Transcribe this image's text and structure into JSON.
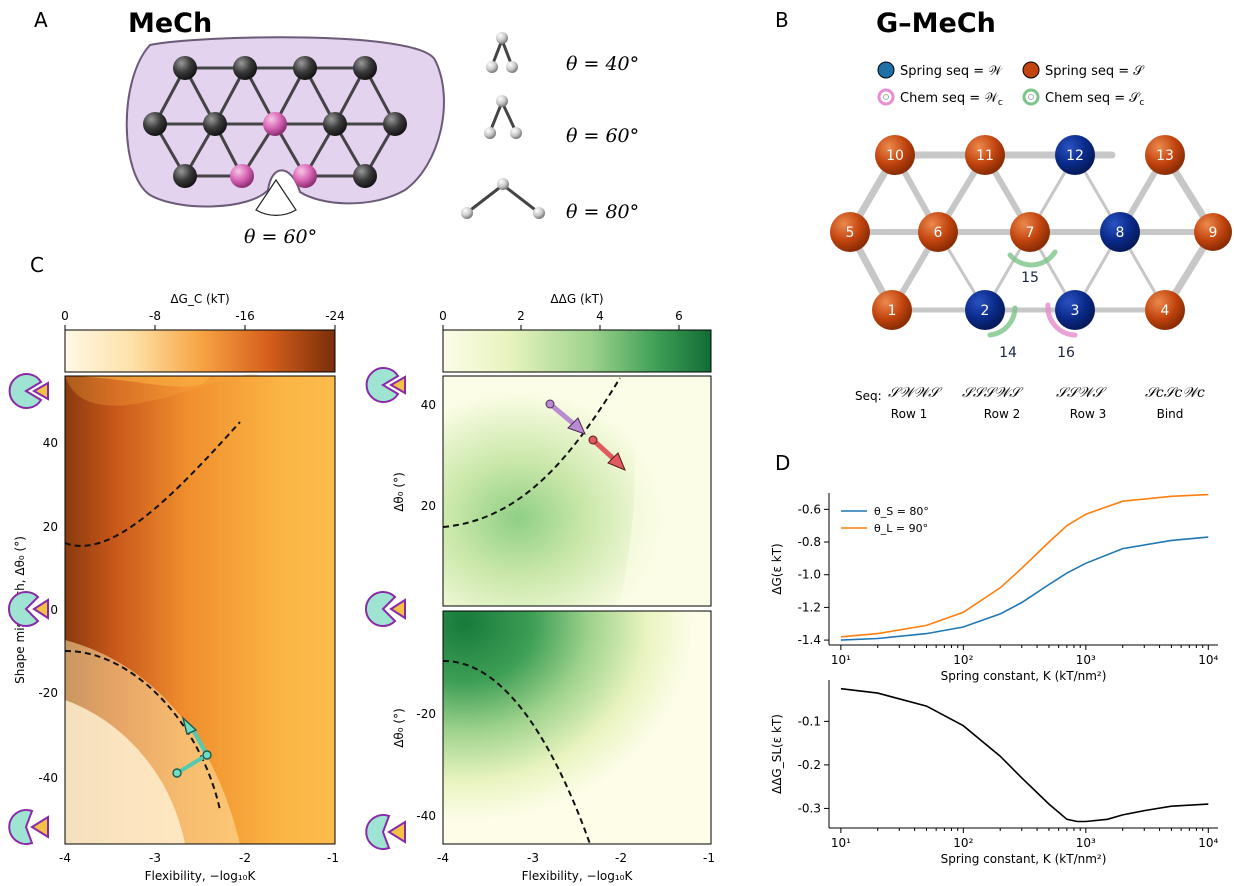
{
  "panel_letters": {
    "a": "A",
    "b": "B",
    "c": "C",
    "d": "D"
  },
  "panelA": {
    "title": "MeCh",
    "angle_label": "θ = 60°",
    "examples": [
      "θ = 40°",
      "θ = 60°",
      "θ = 80°"
    ],
    "colors": {
      "lattice_bg": "#e3d3ef",
      "node": "#3a3a3a",
      "pink": "#d966b6"
    }
  },
  "panelB": {
    "title": "G–MeCh",
    "legend": {
      "spring_W": "Spring seq = 𝒲",
      "spring_S": "Spring seq = 𝒮",
      "chem_W": "Chem seq = 𝒲",
      "chem_W_sub": "c",
      "chem_S": "Chem seq = 𝒮",
      "chem_S_sub": "c"
    },
    "colors": {
      "W": "#0a2a8a",
      "S": "#c2440e",
      "chemW": "#e78fcf",
      "chemS": "#7cc48a"
    },
    "nodes": [
      "1",
      "2",
      "3",
      "4",
      "5",
      "6",
      "7",
      "8",
      "9",
      "10",
      "11",
      "12",
      "13"
    ],
    "chem_labels": [
      "14",
      "15",
      "16"
    ],
    "seq_label": "Seq:",
    "seq_groups": [
      {
        "seq": "𝒮𝒲𝒲𝒮",
        "label": "Row 1"
      },
      {
        "seq": "𝒮𝒮𝒮𝒲𝒮",
        "label": "Row 2"
      },
      {
        "seq": "𝒮𝒮𝒲𝒮",
        "label": "Row 3"
      },
      {
        "seq": "𝒮c𝒮c𝒲c",
        "label": "Bind"
      }
    ]
  },
  "panelC": {
    "left": {
      "colorbar_label": "ΔG_C (kT)",
      "colorbar_ticks": [
        "0",
        "-8",
        "-16",
        "-24"
      ],
      "ylabel": "Shape mismatch, Δθ₀ (°)",
      "xlabel": "Flexibility, −log₁₀K",
      "xticks": [
        "-4",
        "-3",
        "-2",
        "-1"
      ],
      "yticks": [
        "40",
        "20",
        "0",
        "-20",
        "-40"
      ]
    },
    "right": {
      "colorbar_label": "ΔΔG (kT)",
      "colorbar_ticks": [
        "0",
        "2",
        "4",
        "6"
      ],
      "ylabel_top": "Δθ₀ (°)",
      "ylabel_bottom": "Δθ₀ (°)",
      "xlabel": "Flexibility, −log₁₀K",
      "xticks": [
        "-4",
        "-3",
        "-2",
        "-1"
      ],
      "yticks_top": [
        "40",
        "20"
      ],
      "yticks_bottom": [
        "-20",
        "-40"
      ]
    }
  },
  "chart_data": [
    {
      "type": "line",
      "xlabel": "Spring constant, K (kT/nm²)",
      "ylabel": "ΔG(ε kT)",
      "xscale": "log",
      "xlim": [
        8,
        12000
      ],
      "ylim": [
        -1.43,
        -0.5
      ],
      "xticks": [
        "10¹",
        "10²",
        "10³",
        "10⁴"
      ],
      "yticks": [
        -0.6,
        -0.8,
        -1.0,
        -1.2,
        -1.4
      ],
      "legend": "top-left",
      "series": [
        {
          "name": "θ_S = 80°",
          "color": "#1f77b4",
          "x": [
            10,
            20,
            50,
            100,
            200,
            300,
            500,
            700,
            1000,
            2000,
            5000,
            10000
          ],
          "y": [
            -1.4,
            -1.39,
            -1.36,
            -1.32,
            -1.24,
            -1.17,
            -1.06,
            -0.99,
            -0.93,
            -0.84,
            -0.79,
            -0.77
          ]
        },
        {
          "name": "θ_L = 90°",
          "color": "#ff7f0e",
          "x": [
            10,
            20,
            50,
            100,
            200,
            300,
            500,
            700,
            1000,
            2000,
            5000,
            10000
          ],
          "y": [
            -1.38,
            -1.36,
            -1.31,
            -1.23,
            -1.08,
            -0.96,
            -0.8,
            -0.7,
            -0.63,
            -0.55,
            -0.52,
            -0.51
          ]
        }
      ]
    },
    {
      "type": "line",
      "xlabel": "Spring constant, K (kT/nm²)",
      "ylabel": "ΔΔG_SL(ε kT)",
      "xscale": "log",
      "xlim": [
        8,
        12000
      ],
      "ylim": [
        -0.345,
        -0.005
      ],
      "xticks": [
        "10¹",
        "10²",
        "10³",
        "10⁴"
      ],
      "yticks": [
        -0.1,
        -0.2,
        -0.3
      ],
      "series": [
        {
          "color": "#000000",
          "x": [
            10,
            20,
            50,
            100,
            200,
            300,
            500,
            700,
            850,
            1000,
            1500,
            2000,
            3000,
            5000,
            10000
          ],
          "y": [
            -0.025,
            -0.035,
            -0.065,
            -0.11,
            -0.18,
            -0.23,
            -0.29,
            -0.325,
            -0.33,
            -0.33,
            -0.325,
            -0.315,
            -0.305,
            -0.295,
            -0.29
          ]
        }
      ]
    }
  ]
}
